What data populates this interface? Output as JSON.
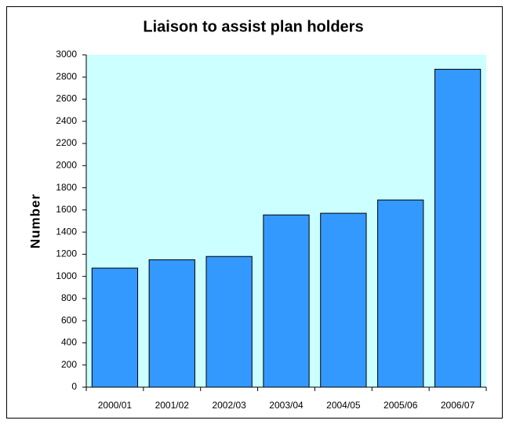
{
  "chart_data": {
    "type": "bar",
    "title": "Liaison to assist plan holders",
    "y_label": "Number",
    "categories": [
      "2000/01",
      "2001/02",
      "2002/03",
      "2003/04",
      "2004/05",
      "2005/06",
      "2006/07"
    ],
    "values": [
      1075,
      1150,
      1180,
      1555,
      1570,
      1690,
      2870
    ],
    "color": "#3399ff",
    "plot_background": "#ccffff",
    "ylim": [
      0,
      3000
    ],
    "yticks": [
      0,
      200,
      400,
      600,
      800,
      1000,
      1200,
      1400,
      1600,
      1800,
      2000,
      2200,
      2400,
      2600,
      2800,
      3000
    ],
    "grid": false
  }
}
